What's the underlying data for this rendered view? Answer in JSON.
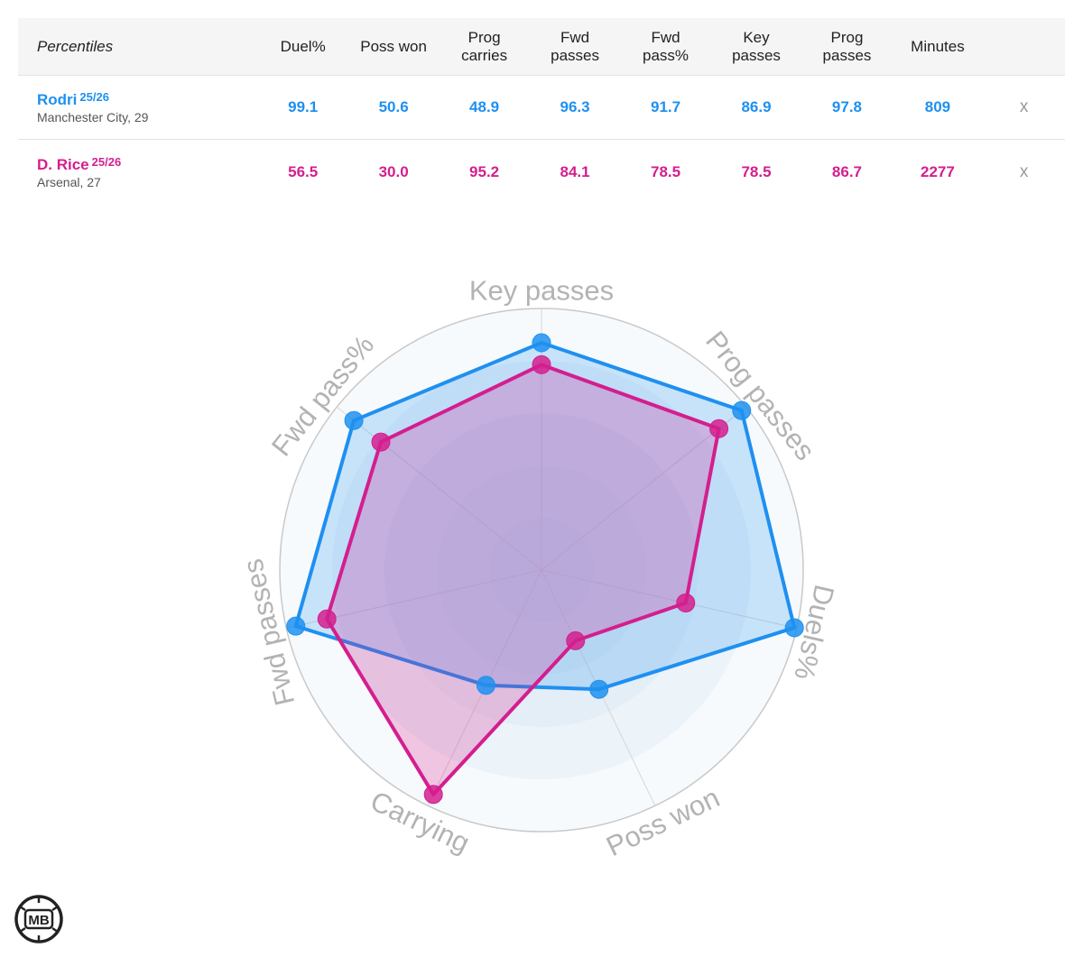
{
  "table": {
    "header_label": "Percentiles",
    "columns": [
      "Duel%",
      "Poss won",
      "Prog\ncarries",
      "Fwd\npasses",
      "Fwd\npass%",
      "Key\npasses",
      "Prog\npasses",
      "Minutes"
    ],
    "close_symbol": "x",
    "players": [
      {
        "name": "Rodri",
        "season": "25/26",
        "club": "Manchester City, 29",
        "color": "#1e90f0",
        "values": [
          "99.1",
          "50.6",
          "48.9",
          "96.3",
          "91.7",
          "86.9",
          "97.8",
          "809"
        ]
      },
      {
        "name": "D. Rice",
        "season": "25/26",
        "club": "Arsenal, 27",
        "color": "#d41e8e",
        "values": [
          "56.5",
          "30.0",
          "95.2",
          "84.1",
          "78.5",
          "78.5",
          "86.7",
          "2277"
        ]
      }
    ]
  },
  "chart_data": {
    "type": "radar",
    "categories": [
      "Key passes",
      "Prog passes",
      "Duels%",
      "Poss won",
      "Carrying",
      "Fwd passes",
      "Fwd pass%"
    ],
    "series": [
      {
        "name": "Rodri",
        "color": "#1e90f0",
        "values": [
          86.9,
          97.8,
          99.1,
          50.6,
          48.9,
          96.3,
          91.7
        ]
      },
      {
        "name": "D. Rice",
        "color": "#d41e8e",
        "values": [
          78.5,
          86.7,
          56.5,
          30.0,
          95.2,
          84.1,
          78.5
        ]
      }
    ],
    "rlim": [
      0,
      100
    ],
    "rings": 5,
    "grid": true,
    "legend": "none"
  },
  "logo": {
    "text": "MB"
  }
}
